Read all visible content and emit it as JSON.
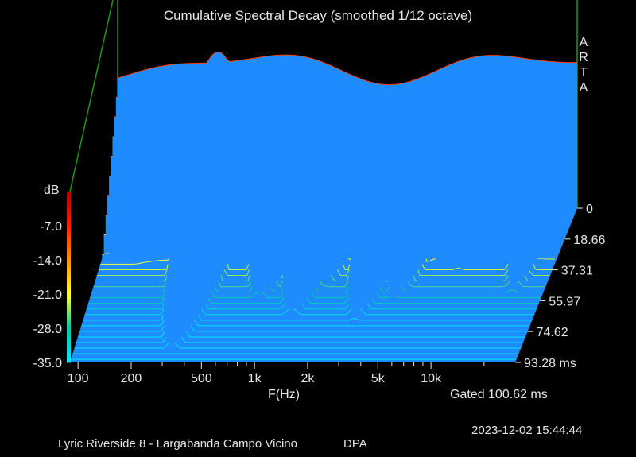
{
  "chart_data": {
    "type": "waterfall",
    "title": "Cumulative Spectral Decay (smoothed 1/12 octave)",
    "brand": [
      "A",
      "R",
      "T",
      "A"
    ],
    "x_label": "F(Hz)",
    "x_scale": "log",
    "x_range": [
      90,
      30000
    ],
    "x_ticks": [
      {
        "value": 100,
        "label": "100"
      },
      {
        "value": 200,
        "label": "200"
      },
      {
        "value": 500,
        "label": "500"
      },
      {
        "value": 1000,
        "label": "1k"
      },
      {
        "value": 2000,
        "label": "2k"
      },
      {
        "value": 5000,
        "label": "5k"
      },
      {
        "value": 10000,
        "label": "10k"
      }
    ],
    "x_minor_ticks": [
      300,
      400,
      600,
      700,
      800,
      900,
      3000,
      4000,
      6000,
      7000,
      8000,
      9000,
      20000
    ],
    "z_label": "dB",
    "z_range": [
      -35,
      0
    ],
    "z_ticks": [
      {
        "value": 0,
        "label": ""
      },
      {
        "value": -7,
        "label": "-7.0"
      },
      {
        "value": -14,
        "label": "-14.0"
      },
      {
        "value": -21,
        "label": "-21.0"
      },
      {
        "value": -28,
        "label": "-28.0"
      },
      {
        "value": -35,
        "label": "-35.0"
      }
    ],
    "t_ticks": [
      {
        "value": 0,
        "label": "0"
      },
      {
        "value": 18.66,
        "label": "18.66"
      },
      {
        "value": 37.31,
        "label": "37.31"
      },
      {
        "value": 55.97,
        "label": "55.97"
      },
      {
        "value": 74.62,
        "label": "74.62"
      },
      {
        "value": 93.28,
        "label": "93.28 ms"
      }
    ],
    "gated_label": "Gated 100.62 ms",
    "colors": {
      "floor": "#1e8cff",
      "frame": "#1a9a1a",
      "colormap": [
        "#00e8ff",
        "#00c8a0",
        "#ffff30",
        "#ff9000",
        "#ff2000",
        "#b00000"
      ]
    },
    "slices": 28,
    "resonances": [
      {
        "freq": 320,
        "level_db": -3,
        "decay_ms": 55
      },
      {
        "freq": 800,
        "level_db": -8,
        "decay_ms": 42
      },
      {
        "freq": 1000,
        "level_db": -10,
        "decay_ms": 30
      },
      {
        "freq": 1300,
        "level_db": -8,
        "decay_ms": 50
      },
      {
        "freq": 1700,
        "level_db": -11,
        "decay_ms": 40
      },
      {
        "freq": 2000,
        "level_db": -14,
        "decay_ms": 28
      },
      {
        "freq": 3000,
        "level_db": -10,
        "decay_ms": 55
      },
      {
        "freq": 4500,
        "level_db": -12,
        "decay_ms": 48
      },
      {
        "freq": 6000,
        "level_db": -18,
        "decay_ms": 30
      },
      {
        "freq": 9000,
        "level_db": -16,
        "decay_ms": 40
      },
      {
        "freq": 20000,
        "level_db": -20,
        "decay_ms": 70
      }
    ]
  },
  "footer": {
    "datetime": "2023-12-02   15:44:44",
    "left": "Lyric Riverside 8 - Largabanda Campo Vicino",
    "right": "DPA"
  }
}
